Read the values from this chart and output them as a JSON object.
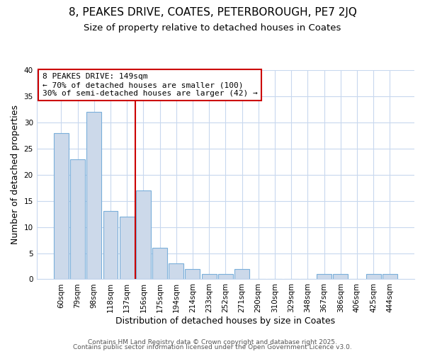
{
  "title1": "8, PEAKES DRIVE, COATES, PETERBOROUGH, PE7 2JQ",
  "title2": "Size of property relative to detached houses in Coates",
  "xlabel": "Distribution of detached houses by size in Coates",
  "ylabel": "Number of detached properties",
  "bar_labels": [
    "60sqm",
    "79sqm",
    "98sqm",
    "118sqm",
    "137sqm",
    "156sqm",
    "175sqm",
    "194sqm",
    "214sqm",
    "233sqm",
    "252sqm",
    "271sqm",
    "290sqm",
    "310sqm",
    "329sqm",
    "348sqm",
    "367sqm",
    "386sqm",
    "406sqm",
    "425sqm",
    "444sqm"
  ],
  "bar_values": [
    28,
    23,
    32,
    13,
    12,
    17,
    6,
    3,
    2,
    1,
    1,
    2,
    0,
    0,
    0,
    0,
    1,
    1,
    0,
    1,
    1
  ],
  "bar_color": "#ccd9ea",
  "bar_edge_color": "#7aafda",
  "background_color": "#ffffff",
  "grid_color": "#c8d8ee",
  "vline_x": 4.5,
  "vline_color": "#cc0000",
  "annotation_text": "8 PEAKES DRIVE: 149sqm\n← 70% of detached houses are smaller (100)\n30% of semi-detached houses are larger (42) →",
  "annotation_box_color": "#ffffff",
  "annotation_box_edge_color": "#cc0000",
  "ylim": [
    0,
    40
  ],
  "yticks": [
    0,
    5,
    10,
    15,
    20,
    25,
    30,
    35,
    40
  ],
  "footer1": "Contains HM Land Registry data © Crown copyright and database right 2025.",
  "footer2": "Contains public sector information licensed under the Open Government Licence v3.0.",
  "title1_fontsize": 11,
  "title2_fontsize": 9.5,
  "axis_label_fontsize": 9,
  "tick_fontsize": 7.5,
  "footer_fontsize": 6.5,
  "annotation_fontsize": 8
}
